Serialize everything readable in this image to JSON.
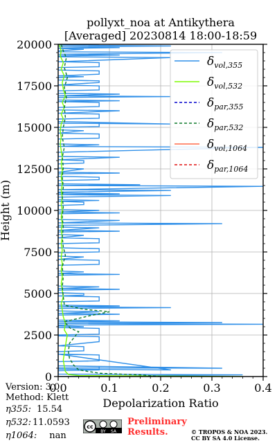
{
  "chart_data": {
    "type": "line",
    "title_line1": "pollyxt_noa at Antikythera",
    "title_line2": "[Averaged] 20230814 18:00-18:59",
    "xlabel": "Depolarization Ratio",
    "ylabel": "Height (m)",
    "xlim": [
      0.0,
      0.4
    ],
    "ylim": [
      0,
      20000
    ],
    "xticks": [
      "0.0",
      "0.1",
      "0.2",
      "0.3",
      "0.4"
    ],
    "yticks": [
      "0",
      "2500",
      "5000",
      "7500",
      "10000",
      "12500",
      "15000",
      "17500",
      "20000"
    ],
    "grid": true,
    "legend_placement": "top-right",
    "legend": [
      {
        "label": "δvol,355",
        "main": "δ",
        "sub": "vol,355",
        "color": "#2f8fe8",
        "dash": "solid"
      },
      {
        "label": "δvol,532",
        "main": "δ",
        "sub": "vol,532",
        "color": "#7cfc00",
        "dash": "solid"
      },
      {
        "label": "δpar,355",
        "main": "δ",
        "sub": "par,355",
        "color": "#0000cc",
        "dash": "dashed"
      },
      {
        "label": "δpar,532",
        "main": "δ",
        "sub": "par,532",
        "color": "#0b7a2a",
        "dash": "dashed"
      },
      {
        "label": "δvol,1064",
        "main": "δ",
        "sub": "vol,1064",
        "color": "#ff6a4a",
        "dash": "solid"
      },
      {
        "label": "δpar,1064",
        "main": "δ",
        "sub": "par,1064",
        "color": "#e01010",
        "dash": "dashed"
      }
    ],
    "series": [
      {
        "name": "δvol,355",
        "color": "#2f8fe8",
        "points": [
          [
            0.0,
            0
          ],
          [
            0.36,
            100
          ],
          [
            0.0,
            150
          ],
          [
            0.0,
            350
          ],
          [
            0.08,
            400
          ],
          [
            0.08,
            600
          ],
          [
            0.0,
            650
          ],
          [
            0.32,
            500
          ],
          [
            0.0,
            520
          ],
          [
            0.0,
            900
          ],
          [
            0.08,
            950
          ],
          [
            0.08,
            1300
          ],
          [
            0.0,
            1350
          ],
          [
            0.22,
            400
          ],
          [
            0.0,
            450
          ],
          [
            0.0,
            1500
          ],
          [
            0.05,
            1550
          ],
          [
            0.05,
            1800
          ],
          [
            0.0,
            1850
          ],
          [
            0.08,
            2100
          ],
          [
            0.08,
            2400
          ],
          [
            0.0,
            2450
          ],
          [
            0.0,
            2500
          ],
          [
            0.08,
            2550
          ],
          [
            0.08,
            2900
          ],
          [
            0.0,
            2950
          ],
          [
            0.05,
            3000
          ],
          [
            0.0,
            3050
          ],
          [
            0.0,
            3100
          ],
          [
            0.4,
            3150
          ],
          [
            0.0,
            3200
          ],
          [
            0.32,
            3250
          ],
          [
            0.0,
            3300
          ],
          [
            0.12,
            3350
          ],
          [
            0.0,
            3400
          ],
          [
            0.0,
            3700
          ],
          [
            0.12,
            3750
          ],
          [
            0.0,
            3800
          ],
          [
            0.08,
            3900
          ],
          [
            0.0,
            3950
          ],
          [
            0.0,
            4100
          ],
          [
            0.22,
            4150
          ],
          [
            0.0,
            4200
          ],
          [
            0.12,
            4250
          ],
          [
            0.0,
            4300
          ],
          [
            0.0,
            4500
          ],
          [
            0.08,
            4550
          ],
          [
            0.08,
            4800
          ],
          [
            0.0,
            4850
          ],
          [
            0.05,
            4900
          ],
          [
            0.05,
            5000
          ],
          [
            0.0,
            5050
          ],
          [
            0.0,
            5200
          ],
          [
            0.12,
            5250
          ],
          [
            0.0,
            5300
          ],
          [
            0.08,
            5400
          ],
          [
            0.0,
            5450
          ],
          [
            0.0,
            6100
          ],
          [
            0.12,
            6150
          ],
          [
            0.0,
            6200
          ],
          [
            0.05,
            6300
          ],
          [
            0.0,
            6350
          ],
          [
            0.0,
            6700
          ],
          [
            0.08,
            6750
          ],
          [
            0.08,
            7000
          ],
          [
            0.0,
            7050
          ],
          [
            0.05,
            7200
          ],
          [
            0.0,
            7250
          ],
          [
            0.0,
            7450
          ],
          [
            0.08,
            7500
          ],
          [
            0.08,
            7700
          ],
          [
            0.0,
            7750
          ],
          [
            0.0,
            8000
          ],
          [
            0.08,
            8050
          ],
          [
            0.08,
            8300
          ],
          [
            0.0,
            8350
          ],
          [
            0.05,
            8500
          ],
          [
            0.0,
            8550
          ],
          [
            0.0,
            8700
          ],
          [
            0.12,
            8750
          ],
          [
            0.0,
            8800
          ],
          [
            0.08,
            8950
          ],
          [
            0.0,
            9000
          ],
          [
            0.0,
            9100
          ],
          [
            0.32,
            9200
          ],
          [
            0.0,
            9250
          ],
          [
            0.12,
            9400
          ],
          [
            0.0,
            9450
          ],
          [
            0.0,
            9800
          ],
          [
            0.12,
            9850
          ],
          [
            0.0,
            9900
          ],
          [
            0.08,
            10000
          ],
          [
            0.0,
            10050
          ],
          [
            0.0,
            10300
          ],
          [
            0.05,
            10350
          ],
          [
            0.05,
            10500
          ],
          [
            0.0,
            10550
          ],
          [
            0.08,
            10600
          ],
          [
            0.0,
            10650
          ],
          [
            0.0,
            10800
          ],
          [
            0.22,
            10900
          ],
          [
            0.0,
            10950
          ],
          [
            0.12,
            11000
          ],
          [
            0.0,
            11050
          ],
          [
            0.0,
            11100
          ],
          [
            0.22,
            11200
          ],
          [
            0.0,
            11250
          ],
          [
            0.4,
            11450
          ],
          [
            0.0,
            11500
          ],
          [
            0.16,
            11550
          ],
          [
            0.0,
            11600
          ],
          [
            0.0,
            11800
          ],
          [
            0.08,
            11850
          ],
          [
            0.08,
            12000
          ],
          [
            0.0,
            12050
          ],
          [
            0.0,
            12200
          ],
          [
            0.12,
            12250
          ],
          [
            0.0,
            12300
          ],
          [
            0.05,
            12500
          ],
          [
            0.0,
            12550
          ],
          [
            0.0,
            12800
          ],
          [
            0.05,
            12850
          ],
          [
            0.05,
            13000
          ],
          [
            0.0,
            13050
          ],
          [
            0.12,
            13200
          ],
          [
            0.0,
            13250
          ],
          [
            0.0,
            13500
          ],
          [
            0.4,
            13800
          ],
          [
            0.0,
            13850
          ],
          [
            0.08,
            13950
          ],
          [
            0.0,
            14000
          ],
          [
            0.0,
            14300
          ],
          [
            0.08,
            14350
          ],
          [
            0.08,
            14600
          ],
          [
            0.0,
            14650
          ],
          [
            0.05,
            14800
          ],
          [
            0.0,
            14850
          ],
          [
            0.0,
            15000
          ],
          [
            0.08,
            15050
          ],
          [
            0.08,
            15300
          ],
          [
            0.0,
            15350
          ],
          [
            0.22,
            15200
          ],
          [
            0.0,
            15250
          ],
          [
            0.0,
            15500
          ],
          [
            0.08,
            15550
          ],
          [
            0.08,
            15800
          ],
          [
            0.0,
            15850
          ],
          [
            0.12,
            16000
          ],
          [
            0.0,
            16050
          ],
          [
            0.0,
            16200
          ],
          [
            0.08,
            16250
          ],
          [
            0.08,
            16500
          ],
          [
            0.0,
            16550
          ],
          [
            0.12,
            16600
          ],
          [
            0.0,
            16650
          ],
          [
            0.0,
            16800
          ],
          [
            0.22,
            16850
          ],
          [
            0.0,
            16900
          ],
          [
            0.12,
            17000
          ],
          [
            0.0,
            17050
          ],
          [
            0.0,
            17200
          ],
          [
            0.08,
            17250
          ],
          [
            0.08,
            17500
          ],
          [
            0.0,
            17550
          ],
          [
            0.08,
            17700
          ],
          [
            0.08,
            17800
          ],
          [
            0.0,
            17850
          ],
          [
            0.0,
            18000
          ],
          [
            0.05,
            18050
          ],
          [
            0.0,
            18100
          ],
          [
            0.08,
            18200
          ],
          [
            0.08,
            18400
          ],
          [
            0.0,
            18450
          ],
          [
            0.0,
            18600
          ],
          [
            0.08,
            18650
          ],
          [
            0.08,
            18900
          ],
          [
            0.0,
            18950
          ],
          [
            0.22,
            19200
          ],
          [
            0.0,
            19250
          ],
          [
            0.0,
            19300
          ],
          [
            0.12,
            19350
          ],
          [
            0.0,
            19400
          ],
          [
            0.32,
            19500
          ],
          [
            0.0,
            19550
          ],
          [
            0.0,
            19600
          ],
          [
            0.05,
            19700
          ],
          [
            0.0,
            19750
          ],
          [
            0.12,
            19800
          ],
          [
            0.0,
            19850
          ],
          [
            0.22,
            19900
          ],
          [
            0.0,
            19950
          ],
          [
            0.08,
            20000
          ]
        ]
      },
      {
        "name": "δvol,532",
        "color": "#7cfc00",
        "points": [
          [
            0.36,
            0
          ],
          [
            0.04,
            60
          ],
          [
            0.02,
            120
          ],
          [
            0.014,
            300
          ],
          [
            0.012,
            600
          ],
          [
            0.01,
            1000
          ],
          [
            0.012,
            1400
          ],
          [
            0.014,
            1800
          ],
          [
            0.016,
            2200
          ],
          [
            0.018,
            2500
          ],
          [
            0.012,
            2800
          ],
          [
            0.014,
            3200
          ],
          [
            0.01,
            3600
          ],
          [
            0.008,
            4000
          ],
          [
            0.006,
            4400
          ],
          [
            0.01,
            4800
          ],
          [
            0.008,
            5200
          ],
          [
            0.006,
            5600
          ],
          [
            0.008,
            6000
          ],
          [
            0.006,
            6400
          ],
          [
            0.008,
            6800
          ],
          [
            0.006,
            7200
          ],
          [
            0.008,
            7600
          ],
          [
            0.006,
            8000
          ],
          [
            0.008,
            8400
          ],
          [
            0.006,
            8800
          ],
          [
            0.008,
            9200
          ],
          [
            0.006,
            9600
          ],
          [
            0.008,
            10000
          ],
          [
            0.006,
            10400
          ],
          [
            0.008,
            10800
          ],
          [
            0.006,
            11200
          ],
          [
            0.008,
            11600
          ],
          [
            0.006,
            12000
          ],
          [
            0.008,
            12400
          ],
          [
            0.006,
            12800
          ],
          [
            0.008,
            13200
          ],
          [
            0.006,
            13600
          ],
          [
            0.004,
            14000
          ],
          [
            0.006,
            14400
          ],
          [
            0.004,
            14800
          ],
          [
            0.006,
            15200
          ],
          [
            0.01,
            15500
          ],
          [
            0.006,
            15800
          ],
          [
            0.012,
            16200
          ],
          [
            0.008,
            16500
          ],
          [
            0.014,
            16900
          ],
          [
            0.01,
            17300
          ],
          [
            0.008,
            17700
          ],
          [
            0.012,
            18100
          ],
          [
            0.006,
            18500
          ],
          [
            0.01,
            18900
          ],
          [
            0.004,
            19300
          ],
          [
            0.006,
            19600
          ],
          [
            0.002,
            20000
          ]
        ]
      },
      {
        "name": "δpar,532",
        "color": "#0b7a2a",
        "dashed": true,
        "points": [
          [
            0.2,
            0
          ],
          [
            0.16,
            100
          ],
          [
            0.08,
            200
          ],
          [
            0.04,
            400
          ],
          [
            0.03,
            700
          ],
          [
            0.022,
            1100
          ],
          [
            0.02,
            1500
          ],
          [
            0.022,
            2000
          ],
          [
            0.04,
            2700
          ],
          [
            0.024,
            2900
          ],
          [
            0.012,
            3300
          ],
          [
            0.06,
            3650
          ],
          [
            0.1,
            3900
          ],
          [
            0.05,
            4050
          ],
          [
            0.012,
            4300
          ],
          [
            0.01,
            4800
          ],
          [
            0.008,
            5400
          ],
          [
            0.01,
            6000
          ],
          [
            0.008,
            6600
          ],
          [
            0.014,
            7300
          ],
          [
            0.01,
            7800
          ],
          [
            0.008,
            8400
          ],
          [
            0.01,
            9000
          ],
          [
            0.008,
            9600
          ],
          [
            0.01,
            10200
          ],
          [
            0.008,
            10800
          ],
          [
            0.01,
            11400
          ],
          [
            0.008,
            12000
          ],
          [
            0.01,
            12600
          ],
          [
            0.008,
            13200
          ],
          [
            0.012,
            13800
          ],
          [
            0.008,
            14400
          ],
          [
            0.01,
            15000
          ],
          [
            0.014,
            15600
          ],
          [
            0.012,
            16200
          ],
          [
            0.016,
            16800
          ],
          [
            0.012,
            17400
          ],
          [
            0.018,
            18000
          ],
          [
            0.012,
            18600
          ],
          [
            0.016,
            19200
          ],
          [
            0.01,
            19600
          ],
          [
            0.006,
            20000
          ]
        ]
      }
    ]
  },
  "info": {
    "version": "Version: 3.0",
    "method": "Method: Klett",
    "eta355_label": "η355:",
    "eta355_value": "15.54",
    "eta532_label": "η532:",
    "eta532_value": "11.0593",
    "eta1064_label": "η1064:",
    "eta1064_value": "nan"
  },
  "footer": {
    "preliminary_line1": "Preliminary",
    "preliminary_line2": "Results.",
    "copyright_line1": "© TROPOS & NOA 2023.",
    "copyright_line2": "CC BY SA 4.0 License.",
    "cc_label": "cc",
    "by_label": "BY",
    "sa_label": "SA",
    "color_preliminary": "#ff2d2d"
  }
}
